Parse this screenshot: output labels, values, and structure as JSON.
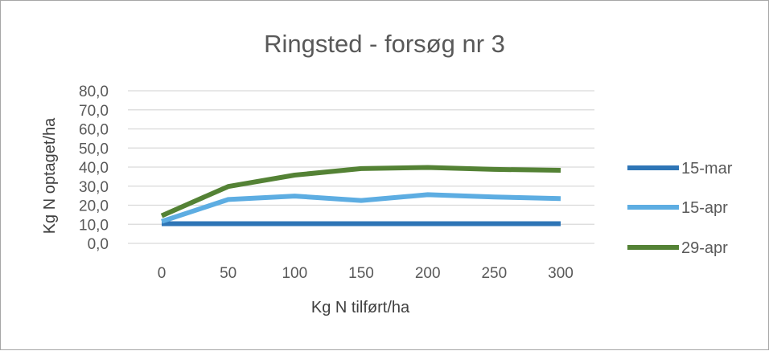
{
  "chart_data": {
    "type": "line",
    "title": "Ringsted - forsøg nr 3",
    "xlabel": "Kg N tilført/ha",
    "ylabel": "Kg N optaget/ha",
    "x": [
      0,
      50,
      100,
      150,
      200,
      250,
      300
    ],
    "x_tick_labels": [
      "0",
      "50",
      "100",
      "150",
      "200",
      "250",
      "300"
    ],
    "ylim": [
      0,
      80
    ],
    "y_tick_labels": [
      "0,0",
      "10,0",
      "20,0",
      "30,0",
      "40,0",
      "50,0",
      "60,0",
      "70,0",
      "80,0"
    ],
    "grid": true,
    "legend_position": "right",
    "series": [
      {
        "name": "15-mar",
        "color": "#2e75b6",
        "values": [
          10.3,
          10.3,
          10.3,
          10.3,
          10.3,
          10.3,
          10.3
        ]
      },
      {
        "name": "15-apr",
        "color": "#5dade2",
        "values": [
          11.5,
          23.0,
          24.8,
          22.5,
          25.5,
          24.3,
          23.5
        ]
      },
      {
        "name": "29-apr",
        "color": "#548235",
        "values": [
          14.5,
          29.8,
          35.8,
          39.2,
          39.8,
          38.8,
          38.3
        ]
      }
    ]
  }
}
